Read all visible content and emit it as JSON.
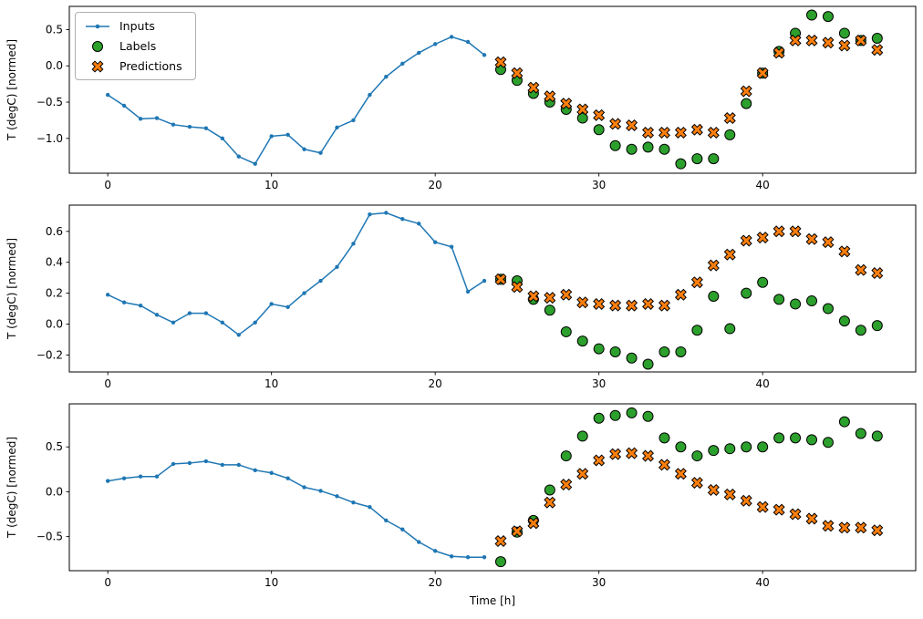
{
  "figure": {
    "ylabel": "T (degC) [normed]",
    "xlabel": "Time [h]",
    "legend": [
      "Inputs",
      "Labels",
      "Predictions"
    ],
    "colors": {
      "inputs": "#1f77b4",
      "labels": "#2ca02c",
      "predictions": "#ff7f0e",
      "marker_edge": "#000000"
    }
  },
  "chart_data": [
    {
      "type": "line",
      "subtype": "line+scatter",
      "title": "",
      "xlabel": "",
      "ylabel": "T (degC) [normed]",
      "xlim": [
        -2.35,
        49.35
      ],
      "ylim": [
        -1.48,
        0.82
      ],
      "xticks": [
        0,
        10,
        20,
        30,
        40
      ],
      "yticks": [
        0.5,
        0.0,
        -0.5,
        -1.0
      ],
      "grid": false,
      "legend_position": "upper left",
      "series": [
        {
          "name": "Inputs",
          "type": "line",
          "marker": "dot",
          "color": "#1f77b4",
          "x": [
            0,
            1,
            2,
            3,
            4,
            5,
            6,
            7,
            8,
            9,
            10,
            11,
            12,
            13,
            14,
            15,
            16,
            17,
            18,
            19,
            20,
            21,
            22,
            23
          ],
          "y": [
            -0.4,
            -0.55,
            -0.73,
            -0.72,
            -0.81,
            -0.84,
            -0.86,
            -1.0,
            -1.25,
            -1.35,
            -0.97,
            -0.95,
            -1.15,
            -1.2,
            -0.85,
            -0.75,
            -0.4,
            -0.15,
            0.03,
            0.18,
            0.3,
            0.4,
            0.33,
            0.15
          ]
        },
        {
          "name": "Labels",
          "type": "scatter",
          "marker": "circle",
          "color": "#2ca02c",
          "x": [
            24,
            25,
            26,
            27,
            28,
            29,
            30,
            31,
            32,
            33,
            34,
            35,
            36,
            37,
            38,
            39,
            40,
            41,
            42,
            43,
            44,
            45,
            46,
            47
          ],
          "y": [
            -0.05,
            -0.2,
            -0.38,
            -0.5,
            -0.6,
            -0.72,
            -0.88,
            -1.1,
            -1.15,
            -1.12,
            -1.15,
            -1.35,
            -1.28,
            -1.28,
            -0.95,
            -0.52,
            -0.1,
            0.2,
            0.45,
            0.7,
            0.68,
            0.45,
            0.35,
            0.38
          ]
        },
        {
          "name": "Predictions",
          "type": "scatter",
          "marker": "X",
          "color": "#ff7f0e",
          "x": [
            24,
            25,
            26,
            27,
            28,
            29,
            30,
            31,
            32,
            33,
            34,
            35,
            36,
            37,
            38,
            39,
            40,
            41,
            42,
            43,
            44,
            45,
            46,
            47
          ],
          "y": [
            0.05,
            -0.1,
            -0.3,
            -0.42,
            -0.52,
            -0.6,
            -0.68,
            -0.8,
            -0.82,
            -0.92,
            -0.92,
            -0.92,
            -0.88,
            -0.92,
            -0.72,
            -0.35,
            -0.1,
            0.18,
            0.35,
            0.35,
            0.32,
            0.28,
            0.35,
            0.22
          ]
        }
      ]
    },
    {
      "type": "line",
      "subtype": "line+scatter",
      "title": "",
      "xlabel": "",
      "ylabel": "T (degC) [normed]",
      "xlim": [
        -2.35,
        49.35
      ],
      "ylim": [
        -0.31,
        0.77
      ],
      "xticks": [
        0,
        10,
        20,
        30,
        40
      ],
      "yticks": [
        0.6,
        0.4,
        0.2,
        0.0,
        -0.2
      ],
      "grid": false,
      "series": [
        {
          "name": "Inputs",
          "type": "line",
          "marker": "dot",
          "color": "#1f77b4",
          "x": [
            0,
            1,
            2,
            3,
            4,
            5,
            6,
            7,
            8,
            9,
            10,
            11,
            12,
            13,
            14,
            15,
            16,
            17,
            18,
            19,
            20,
            21,
            22,
            23
          ],
          "y": [
            0.19,
            0.14,
            0.12,
            0.06,
            0.01,
            0.07,
            0.07,
            0.01,
            -0.07,
            0.01,
            0.13,
            0.11,
            0.2,
            0.28,
            0.37,
            0.52,
            0.71,
            0.72,
            0.68,
            0.65,
            0.53,
            0.5,
            0.21,
            0.28
          ]
        },
        {
          "name": "Labels",
          "type": "scatter",
          "marker": "circle",
          "color": "#2ca02c",
          "x": [
            24,
            25,
            26,
            27,
            28,
            29,
            30,
            31,
            32,
            33,
            34,
            35,
            36,
            37,
            38,
            39,
            40,
            41,
            42,
            43,
            44,
            45,
            46,
            47
          ],
          "y": [
            0.29,
            0.28,
            0.16,
            0.09,
            -0.05,
            -0.11,
            -0.16,
            -0.18,
            -0.22,
            -0.26,
            -0.18,
            -0.18,
            -0.04,
            0.18,
            -0.03,
            0.2,
            0.27,
            0.16,
            0.13,
            0.15,
            0.1,
            0.02,
            -0.04,
            -0.01
          ]
        },
        {
          "name": "Predictions",
          "type": "scatter",
          "marker": "X",
          "color": "#ff7f0e",
          "x": [
            24,
            25,
            26,
            27,
            28,
            29,
            30,
            31,
            32,
            33,
            34,
            35,
            36,
            37,
            38,
            39,
            40,
            41,
            42,
            43,
            44,
            45,
            46,
            47
          ],
          "y": [
            0.29,
            0.24,
            0.18,
            0.17,
            0.19,
            0.14,
            0.13,
            0.12,
            0.12,
            0.13,
            0.12,
            0.19,
            0.27,
            0.38,
            0.45,
            0.54,
            0.56,
            0.6,
            0.6,
            0.55,
            0.53,
            0.47,
            0.35,
            0.33
          ]
        }
      ]
    },
    {
      "type": "line",
      "subtype": "line+scatter",
      "title": "",
      "xlabel": "Time [h]",
      "ylabel": "T (degC) [normed]",
      "xlim": [
        -2.35,
        49.35
      ],
      "ylim": [
        -0.88,
        0.98
      ],
      "xticks": [
        0,
        10,
        20,
        30,
        40
      ],
      "yticks": [
        0.5,
        0.0,
        -0.5
      ],
      "grid": false,
      "series": [
        {
          "name": "Inputs",
          "type": "line",
          "marker": "dot",
          "color": "#1f77b4",
          "x": [
            0,
            1,
            2,
            3,
            4,
            5,
            6,
            7,
            8,
            9,
            10,
            11,
            12,
            13,
            14,
            15,
            16,
            17,
            18,
            19,
            20,
            21,
            22,
            23
          ],
          "y": [
            0.12,
            0.15,
            0.17,
            0.17,
            0.31,
            0.32,
            0.34,
            0.3,
            0.3,
            0.24,
            0.21,
            0.15,
            0.05,
            0.01,
            -0.05,
            -0.12,
            -0.17,
            -0.32,
            -0.42,
            -0.56,
            -0.66,
            -0.72,
            -0.73,
            -0.73
          ]
        },
        {
          "name": "Labels",
          "type": "scatter",
          "marker": "circle",
          "color": "#2ca02c",
          "x": [
            24,
            25,
            26,
            27,
            28,
            29,
            30,
            31,
            32,
            33,
            34,
            35,
            36,
            37,
            38,
            39,
            40,
            41,
            42,
            43,
            44,
            45,
            46,
            47
          ],
          "y": [
            -0.78,
            -0.45,
            -0.32,
            0.02,
            0.4,
            0.62,
            0.82,
            0.85,
            0.88,
            0.84,
            0.6,
            0.5,
            0.4,
            0.46,
            0.48,
            0.5,
            0.5,
            0.6,
            0.6,
            0.58,
            0.55,
            0.78,
            0.65,
            0.62
          ]
        },
        {
          "name": "Predictions",
          "type": "scatter",
          "marker": "X",
          "color": "#ff7f0e",
          "x": [
            24,
            25,
            26,
            27,
            28,
            29,
            30,
            31,
            32,
            33,
            34,
            35,
            36,
            37,
            38,
            39,
            40,
            41,
            42,
            43,
            44,
            45,
            46,
            47
          ],
          "y": [
            -0.55,
            -0.44,
            -0.35,
            -0.12,
            0.08,
            0.2,
            0.35,
            0.42,
            0.43,
            0.4,
            0.3,
            0.2,
            0.1,
            0.02,
            -0.03,
            -0.1,
            -0.17,
            -0.2,
            -0.25,
            -0.3,
            -0.38,
            -0.4,
            -0.4,
            -0.43
          ]
        }
      ]
    }
  ]
}
